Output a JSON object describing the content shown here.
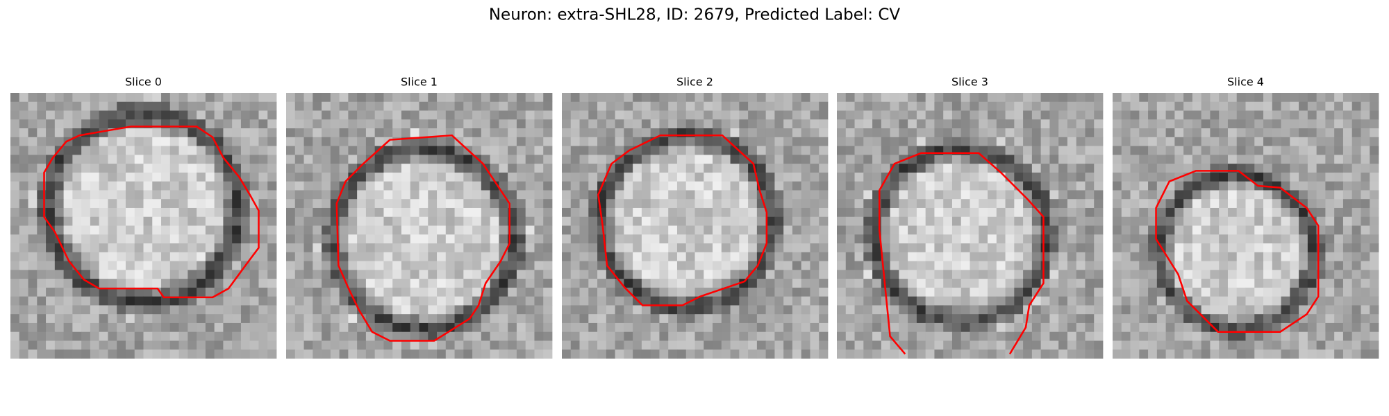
{
  "title": "Neuron: extra-SHL28, ID: 2679, Predicted Label: CV",
  "panels": [
    {
      "title": "Slice 0"
    },
    {
      "title": "Slice 1"
    },
    {
      "title": "Slice 2"
    },
    {
      "title": "Slice 3"
    },
    {
      "title": "Slice 4"
    }
  ]
}
